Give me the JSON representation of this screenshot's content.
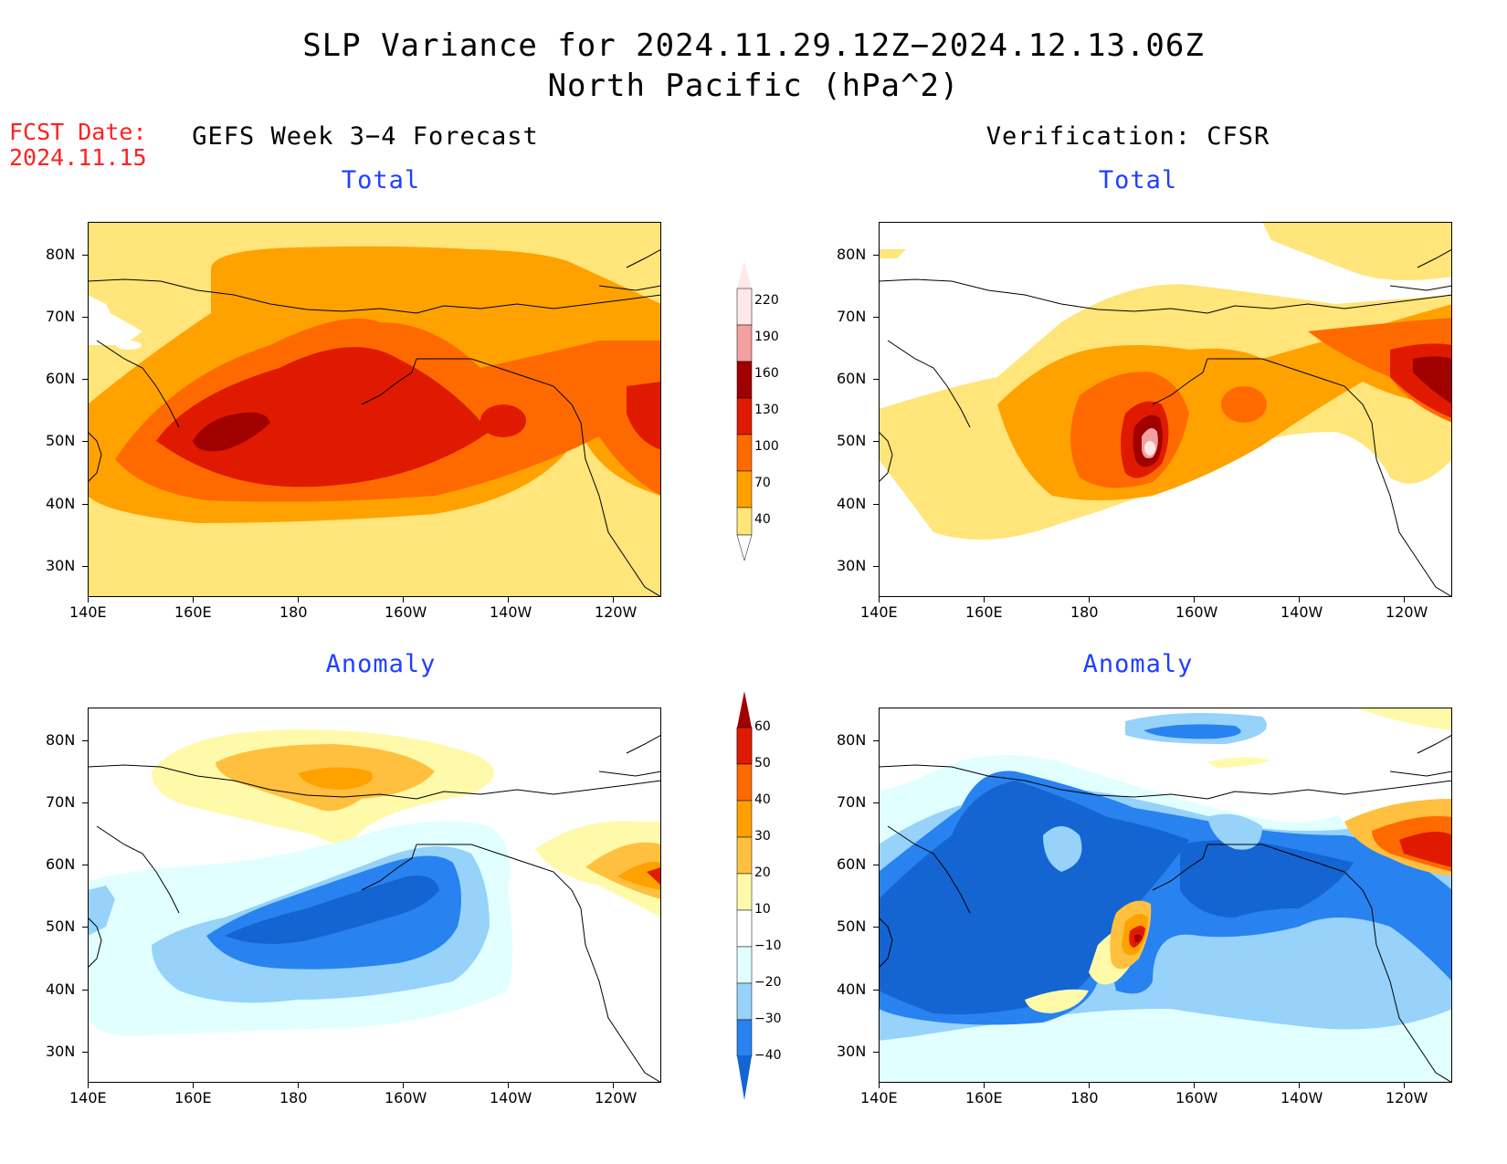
{
  "title_line1": "SLP Variance for 2024.11.29.12Z−2024.12.13.06Z",
  "title_line2": "North Pacific (hPa^2)",
  "fcst_label": "FCST Date:",
  "fcst_date": "2024.11.15",
  "left_column_title": "GEFS Week 3−4 Forecast",
  "right_column_title": "Verification: CFSR",
  "panel_titles": {
    "total": "Total",
    "anomaly": "Anomaly"
  },
  "lat_labels": [
    "80N",
    "70N",
    "60N",
    "50N",
    "40N",
    "30N"
  ],
  "lon_labels": [
    "140E",
    "160E",
    "180",
    "160W",
    "140W",
    "120W"
  ],
  "colors": {
    "total": [
      "#ffffff",
      "#ffe57a",
      "#ffa200",
      "#ff6a00",
      "#e01a00",
      "#a00000",
      "#f4a0a0",
      "#ffe8e8"
    ],
    "anom_neg": [
      "#1464d2",
      "#2882f0",
      "#96d2fa",
      "#e1ffff"
    ],
    "anom_pos": [
      "#fffaaa",
      "#ffc040",
      "#ffa000",
      "#ff6a00",
      "#e01a00",
      "#a00000"
    ]
  },
  "colorbar_total": {
    "levels": [
      "40",
      "70",
      "100",
      "130",
      "160",
      "190",
      "220"
    ]
  },
  "colorbar_anomaly": {
    "levels": [
      "-40",
      "-30",
      "-20",
      "-10",
      "10",
      "20",
      "30",
      "40",
      "50",
      "60"
    ]
  }
}
